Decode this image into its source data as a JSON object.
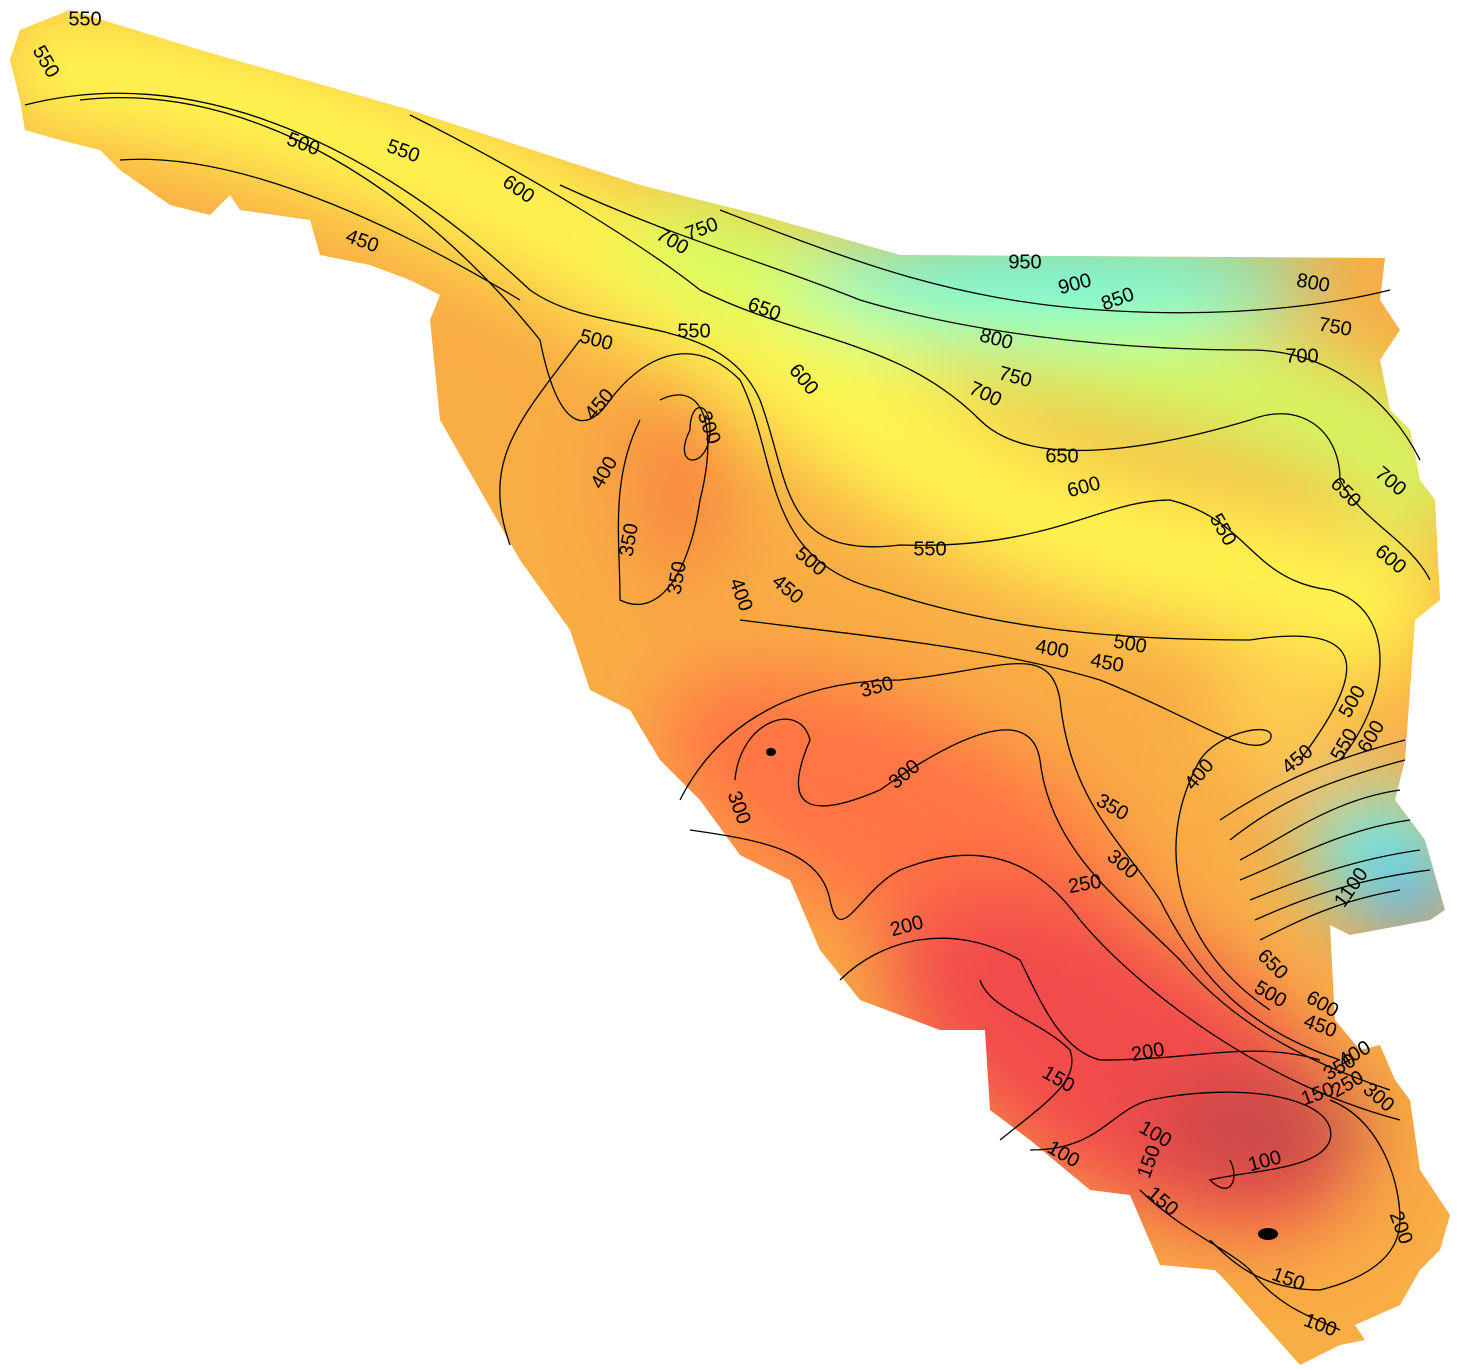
{
  "contour_labels": [
    550,
    550,
    500,
    550,
    450,
    600,
    750,
    700,
    950,
    900,
    850,
    800,
    750,
    700,
    650,
    800,
    750,
    700,
    550,
    500,
    600,
    450,
    300,
    400,
    650,
    600,
    550,
    700,
    650,
    600,
    350,
    350,
    500,
    450,
    550,
    400,
    500,
    400,
    450,
    350,
    500,
    600,
    550,
    450,
    400,
    300,
    300,
    350,
    300,
    250,
    1100,
    200,
    650,
    500,
    600,
    450,
    200,
    400,
    350,
    250,
    300,
    150,
    150,
    100,
    150,
    100,
    100,
    150,
    200,
    150,
    100
  ]
}
